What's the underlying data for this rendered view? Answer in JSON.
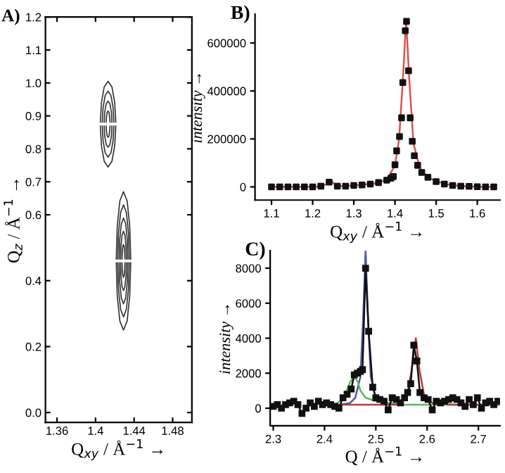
{
  "chart_data": [
    {
      "type": "line",
      "title": "A)",
      "xlabel": "Q$_{xy}$ / Å$^{−1}$ →",
      "ylabel": "Q$_{z}$ / Å$^{−1}$ →",
      "xlim": [
        1.348,
        1.5
      ],
      "ylim": [
        -0.03,
        1.2
      ],
      "xticks": [
        1.36,
        1.4,
        1.44,
        1.48
      ],
      "yticks": [
        {
          "value": 0.0,
          "label": "0.0"
        },
        {
          "value": 0.2,
          "label": "0.2"
        },
        {
          "value": 0.4,
          "label": "0.4"
        },
        {
          "value": 0.6,
          "label": "0.6"
        },
        {
          "value": 0.7,
          "label": "0.7"
        },
        {
          "value": 0.8,
          "label": "0.8"
        },
        {
          "value": 0.9,
          "label": "0.9"
        },
        {
          "value": 1.0,
          "label": "1.0"
        },
        {
          "value": 1.1,
          "label": "1.1"
        },
        {
          "value": 1.2,
          "label": "1.2"
        }
      ],
      "grid": false,
      "legend": false,
      "marker": "none",
      "line_style": "solid",
      "series": [
        {
          "color": "#333333",
          "x": [
            1.405,
            1.4061,
            1.409,
            1.413,
            1.417,
            1.4199,
            1.421
          ],
          "values": [
            0.881,
            0.94,
            0.988,
            1.005,
            0.988,
            0.94,
            0.881
          ]
        },
        {
          "color": "#333333",
          "x": [
            1.405,
            1.4061,
            1.409,
            1.413,
            1.417,
            1.4199,
            1.421
          ],
          "values": [
            0.869,
            0.81,
            0.762,
            0.745,
            0.762,
            0.81,
            0.869
          ]
        },
        {
          "color": "#333333",
          "x": [
            1.407,
            1.4078,
            1.41,
            1.413,
            1.416,
            1.4182,
            1.419
          ],
          "values": [
            0.881,
            0.925,
            0.962,
            0.975,
            0.962,
            0.925,
            0.881
          ]
        },
        {
          "color": "#333333",
          "x": [
            1.407,
            1.4078,
            1.41,
            1.413,
            1.416,
            1.4182,
            1.419
          ],
          "values": [
            0.869,
            0.825,
            0.788,
            0.775,
            0.788,
            0.825,
            0.869
          ]
        },
        {
          "color": "#333333",
          "x": [
            1.409,
            1.4095,
            1.411,
            1.413,
            1.415,
            1.4165,
            1.417
          ],
          "values": [
            0.881,
            0.91,
            0.936,
            0.945,
            0.936,
            0.91,
            0.881
          ]
        },
        {
          "color": "#333333",
          "x": [
            1.409,
            1.4095,
            1.411,
            1.413,
            1.415,
            1.4165,
            1.417
          ],
          "values": [
            0.869,
            0.84,
            0.814,
            0.805,
            0.814,
            0.84,
            0.869
          ]
        },
        {
          "color": "#333333",
          "x": [
            1.411,
            1.4113,
            1.412,
            1.413,
            1.414,
            1.4147,
            1.415
          ],
          "values": [
            0.881,
            0.895,
            0.91,
            0.915,
            0.91,
            0.895,
            0.881
          ]
        },
        {
          "color": "#333333",
          "x": [
            1.411,
            1.4113,
            1.412,
            1.413,
            1.414,
            1.4147,
            1.415
          ],
          "values": [
            0.869,
            0.855,
            0.84,
            0.835,
            0.84,
            0.855,
            0.869
          ]
        },
        {
          "color": "#333333",
          "x": [
            1.4215,
            1.4225,
            1.4252,
            1.429,
            1.4328,
            1.4355,
            1.4365
          ],
          "values": [
            0.466,
            0.565,
            0.642,
            0.67,
            0.642,
            0.565,
            0.466
          ]
        },
        {
          "color": "#333333",
          "x": [
            1.4215,
            1.4225,
            1.4252,
            1.429,
            1.4328,
            1.4355,
            1.4365
          ],
          "values": [
            0.454,
            0.355,
            0.278,
            0.25,
            0.278,
            0.355,
            0.454
          ]
        },
        {
          "color": "#333333",
          "x": [
            1.423,
            1.4238,
            1.426,
            1.429,
            1.432,
            1.4342,
            1.435
          ],
          "values": [
            0.466,
            0.545,
            0.607,
            0.63,
            0.607,
            0.545,
            0.466
          ]
        },
        {
          "color": "#333333",
          "x": [
            1.423,
            1.4238,
            1.426,
            1.429,
            1.432,
            1.4342,
            1.435
          ],
          "values": [
            0.454,
            0.375,
            0.313,
            0.29,
            0.313,
            0.375,
            0.454
          ]
        },
        {
          "color": "#333333",
          "x": [
            1.4245,
            1.4251,
            1.4268,
            1.429,
            1.4313,
            1.4329,
            1.4335
          ],
          "values": [
            0.466,
            0.525,
            0.573,
            0.59,
            0.573,
            0.525,
            0.466
          ]
        },
        {
          "color": "#333333",
          "x": [
            1.4245,
            1.4251,
            1.4268,
            1.429,
            1.4313,
            1.4329,
            1.4335
          ],
          "values": [
            0.454,
            0.395,
            0.347,
            0.33,
            0.347,
            0.395,
            0.454
          ]
        },
        {
          "color": "#333333",
          "x": [
            1.426,
            1.4264,
            1.4275,
            1.429,
            1.4305,
            1.4316,
            1.432
          ],
          "values": [
            0.466,
            0.505,
            0.538,
            0.55,
            0.538,
            0.505,
            0.466
          ]
        },
        {
          "color": "#333333",
          "x": [
            1.426,
            1.4264,
            1.4275,
            1.429,
            1.4305,
            1.4316,
            1.432
          ],
          "values": [
            0.454,
            0.415,
            0.382,
            0.37,
            0.382,
            0.415,
            0.454
          ]
        },
        {
          "color": "#333333",
          "x": [
            1.4275,
            1.4277,
            1.4283,
            1.429,
            1.4298,
            1.4303,
            1.4305
          ],
          "values": [
            0.466,
            0.485,
            0.503,
            0.51,
            0.503,
            0.485,
            0.466
          ]
        },
        {
          "color": "#333333",
          "x": [
            1.4275,
            1.4277,
            1.4283,
            1.429,
            1.4298,
            1.4303,
            1.4305
          ],
          "values": [
            0.454,
            0.435,
            0.417,
            0.41,
            0.417,
            0.435,
            0.454
          ]
        }
      ]
    },
    {
      "type": "scatter",
      "title": "B)",
      "xlabel": "Q$_{xy}$ / Å$^{−1}$ →",
      "ylabel": "intensity →",
      "xlim": [
        1.06,
        1.655
      ],
      "ylim": [
        -55000,
        720000
      ],
      "xticks": [
        {
          "value": 1.1,
          "label": "1.1"
        },
        {
          "value": 1.2,
          "label": "1.2"
        },
        {
          "value": 1.3,
          "label": "1.3"
        },
        {
          "value": 1.4,
          "label": "1.4"
        },
        {
          "value": 1.5,
          "label": "1.5"
        },
        {
          "value": 1.6,
          "label": "1.6"
        }
      ],
      "yticks": [
        0,
        200000,
        400000,
        600000
      ],
      "grid": false,
      "legend": false,
      "series": [
        {
          "type": "scatter",
          "marker": "square",
          "color": "#111111",
          "x": [
            1.1,
            1.12,
            1.14,
            1.16,
            1.18,
            1.2,
            1.22,
            1.24,
            1.26,
            1.28,
            1.3,
            1.32,
            1.34,
            1.36,
            1.38,
            1.39,
            1.396,
            1.4,
            1.404,
            1.411,
            1.416,
            1.419,
            1.425,
            1.428,
            1.433,
            1.437,
            1.442,
            1.447,
            1.455,
            1.465,
            1.48,
            1.5,
            1.52,
            1.54,
            1.56,
            1.58,
            1.6,
            1.62,
            1.64
          ],
          "values": [
            0,
            0,
            0,
            0,
            0,
            0,
            3000,
            20000,
            3000,
            3000,
            6000,
            8000,
            12000,
            18000,
            28000,
            36000,
            43000,
            92000,
            150000,
            210000,
            288000,
            435000,
            651000,
            690000,
            484000,
            288000,
            190000,
            130000,
            90000,
            60000,
            40000,
            22000,
            12000,
            6000,
            3000,
            2000,
            1000,
            0,
            0
          ]
        },
        {
          "type": "line",
          "marker": "none",
          "line_style": "solid",
          "color": "#e0504a",
          "x": [
            1.1,
            1.2,
            1.22,
            1.235,
            1.245,
            1.255,
            1.27,
            1.3,
            1.35,
            1.38,
            1.4,
            1.41,
            1.42,
            1.427,
            1.435,
            1.445,
            1.46,
            1.48,
            1.52,
            1.56,
            1.6,
            1.64
          ],
          "values": [
            0,
            0,
            2000,
            12000,
            25000,
            10000,
            3000,
            6000,
            14000,
            30000,
            90000,
            200000,
            470000,
            700000,
            440000,
            180000,
            80000,
            38000,
            12000,
            4000,
            1000,
            0
          ]
        }
      ]
    },
    {
      "type": "line",
      "title": "C)",
      "xlabel": "Q / Å$^{−1}$ →",
      "ylabel": "intensity →",
      "xlim": [
        2.294,
        2.742
      ],
      "ylim": [
        -1000,
        9000
      ],
      "xticks": [
        {
          "value": 2.3,
          "label": "2.3"
        },
        {
          "value": 2.4,
          "label": "2.4"
        },
        {
          "value": 2.5,
          "label": "2.5"
        },
        {
          "value": 2.6,
          "label": "2.6"
        },
        {
          "value": 2.7,
          "label": "2.7"
        }
      ],
      "yticks": [
        0,
        2000,
        4000,
        6000,
        8000
      ],
      "grid": false,
      "legend": false,
      "series": [
        {
          "type": "line",
          "marker": "none",
          "line_style": "solid",
          "color": "#4a5aa8",
          "x": [
            2.43,
            2.45,
            2.46,
            2.47,
            2.475,
            2.48,
            2.485,
            2.49,
            2.5,
            2.52,
            2.55
          ],
          "values": [
            200,
            300,
            600,
            1800,
            5000,
            9000,
            5000,
            1800,
            600,
            300,
            200
          ]
        },
        {
          "type": "line",
          "marker": "none",
          "line_style": "solid",
          "color": "#5cb85c",
          "x": [
            2.4,
            2.42,
            2.43,
            2.44,
            2.45,
            2.458,
            2.465,
            2.47,
            2.48,
            2.5,
            2.55,
            2.65,
            2.74
          ],
          "values": [
            200,
            200,
            400,
            800,
            1500,
            1800,
            1500,
            1000,
            600,
            400,
            200,
            200,
            200
          ]
        },
        {
          "type": "line",
          "marker": "none",
          "line_style": "solid",
          "color": "#b83a3a",
          "x": [
            2.4,
            2.5,
            2.54,
            2.56,
            2.57,
            2.578,
            2.585,
            2.595,
            2.61,
            2.65,
            2.74
          ],
          "values": [
            200,
            200,
            200,
            600,
            2200,
            4000,
            2200,
            600,
            300,
            200,
            200
          ]
        },
        {
          "type": "line",
          "marker": "square",
          "line_style": "solid",
          "color": "#111111",
          "x": [
            2.3,
            2.308,
            2.316,
            2.324,
            2.332,
            2.34,
            2.348,
            2.356,
            2.364,
            2.372,
            2.38,
            2.388,
            2.396,
            2.404,
            2.412,
            2.42,
            2.428,
            2.436,
            2.444,
            2.452,
            2.458,
            2.464,
            2.47,
            2.474,
            2.48,
            2.486,
            2.494,
            2.5,
            2.508,
            2.516,
            2.524,
            2.532,
            2.54,
            2.548,
            2.556,
            2.562,
            2.568,
            2.574,
            2.58,
            2.586,
            2.594,
            2.602,
            2.61,
            2.618,
            2.626,
            2.634,
            2.642,
            2.65,
            2.658,
            2.666,
            2.674,
            2.682,
            2.69,
            2.698,
            2.706,
            2.714,
            2.722,
            2.73,
            2.738
          ],
          "values": [
            100,
            200,
            0,
            200,
            300,
            400,
            200,
            -300,
            0,
            300,
            100,
            400,
            200,
            300,
            200,
            100,
            0,
            600,
            800,
            1100,
            1900,
            2000,
            2100,
            2200,
            8000,
            4400,
            1200,
            600,
            500,
            400,
            -100,
            600,
            500,
            300,
            600,
            900,
            1400,
            3600,
            2700,
            900,
            600,
            500,
            -100,
            400,
            300,
            400,
            500,
            600,
            500,
            300,
            100,
            500,
            200,
            600,
            0,
            300,
            400,
            200,
            400
          ]
        }
      ]
    }
  ]
}
